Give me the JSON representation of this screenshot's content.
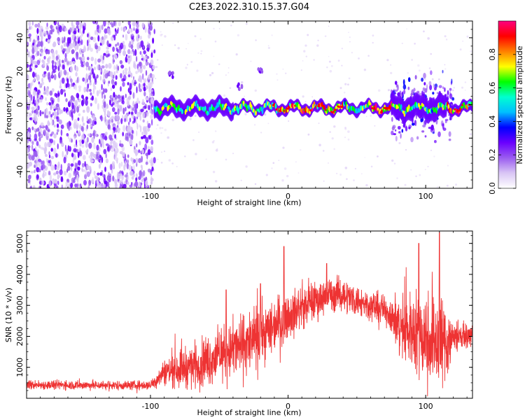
{
  "title": "C2E3.2022.310.15.37.G04",
  "chart_data": [
    {
      "type": "heatmap",
      "title": "C2E3.2022.310.15.37.G04",
      "xlabel": "Height of straight line (km)",
      "ylabel": "Frequency (Hz)",
      "xlim": [
        -190,
        134
      ],
      "ylim": [
        -50,
        50
      ],
      "xticks": [
        -100,
        0,
        100
      ],
      "xtick_labels": [
        "-100",
        "0",
        "100"
      ],
      "yticks": [
        -40,
        -20,
        0,
        20,
        40
      ],
      "ytick_labels": [
        "-40",
        "-20",
        "0",
        "20",
        "40"
      ],
      "colorbar": {
        "label": "Normalized spectral amplitude",
        "range": [
          0,
          1
        ],
        "ticks": [
          0,
          0.2,
          0.4,
          0.6,
          0.8
        ],
        "tick_labels": [
          "0.0",
          "0.2",
          "0.4",
          "0.6",
          "0.8"
        ],
        "colors": [
          "#ffffff",
          "#d9c6f5",
          "#9a5cf0",
          "#6a00ff",
          "#0000ff",
          "#00bfff",
          "#00ffd0",
          "#00ff00",
          "#ffff00",
          "#ff8000",
          "#ff0000",
          "#ff0080"
        ]
      },
      "features": {
        "noise_region_x": [
          -190,
          -97
        ],
        "signal_band_x": [
          -97,
          134
        ],
        "signal_center_freq": -2,
        "isolated_spots": [
          [
            -20,
            20
          ],
          [
            -35,
            11
          ],
          [
            -85,
            18
          ]
        ],
        "bright_segments_x": [
          [
            -15,
            40
          ],
          [
            60,
            75
          ],
          [
            115,
            132
          ]
        ],
        "spread_region_x": [
          75,
          120
        ]
      }
    },
    {
      "type": "line",
      "xlabel": "Height of straight line (km)",
      "ylabel": "SNR (10 * v/v)",
      "xlim": [
        -190,
        134
      ],
      "ylim": [
        0,
        5400
      ],
      "xticks": [
        -100,
        0,
        100
      ],
      "xtick_labels": [
        "-100",
        "0",
        "100"
      ],
      "yticks": [
        1000,
        2000,
        3000,
        4000,
        5000
      ],
      "ytick_labels": [
        "1000",
        "2000",
        "3000",
        "4000",
        "5000"
      ],
      "color": "#ee3333",
      "envelope": {
        "x": [
          -190,
          -160,
          -130,
          -100,
          -90,
          -80,
          -70,
          -60,
          -50,
          -40,
          -30,
          -20,
          -10,
          0,
          10,
          20,
          30,
          40,
          50,
          60,
          70,
          75,
          80,
          90,
          100,
          110,
          115,
          120,
          125,
          130,
          134
        ],
        "mean": [
          430,
          430,
          420,
          420,
          850,
          950,
          1050,
          1200,
          1400,
          1600,
          1750,
          2000,
          2400,
          2700,
          2950,
          3150,
          3350,
          3350,
          3150,
          3000,
          2850,
          2700,
          2300,
          2200,
          2000,
          1900,
          1800,
          2000,
          2050,
          2000,
          2000
        ],
        "spread": [
          220,
          220,
          220,
          220,
          600,
          900,
          1000,
          1200,
          1200,
          1400,
          1500,
          1400,
          1300,
          1100,
          1000,
          900,
          800,
          800,
          750,
          700,
          700,
          800,
          1500,
          1800,
          2200,
          2300,
          2000,
          900,
          600,
          500,
          500
        ]
      },
      "peaks": [
        [
          -3,
          4900
        ],
        [
          -20,
          3700
        ],
        [
          -45,
          3500
        ],
        [
          28,
          4350
        ],
        [
          95,
          5000
        ],
        [
          110,
          5350
        ]
      ]
    }
  ]
}
